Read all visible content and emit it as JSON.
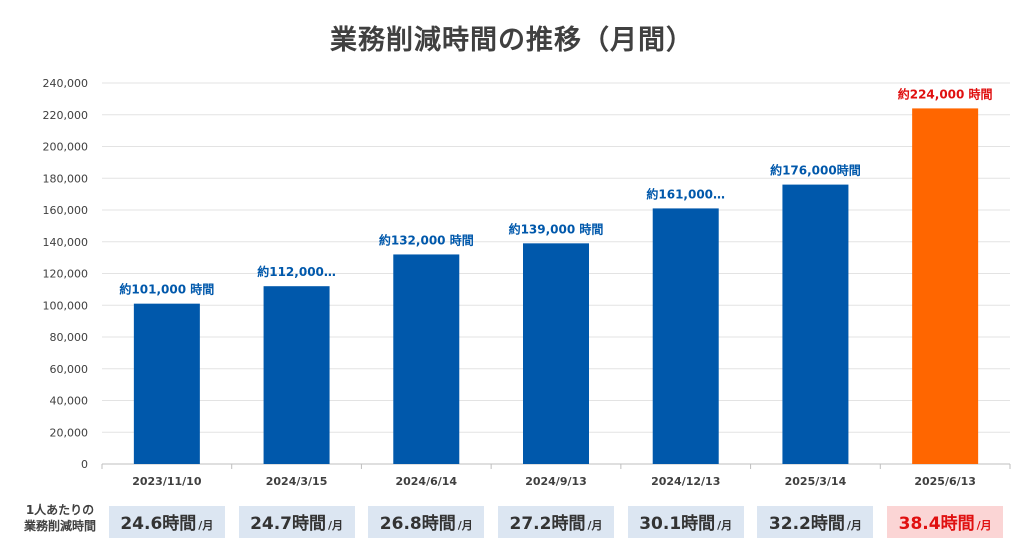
{
  "title": "業務削減時間の推移（月間）",
  "colors": {
    "bar": "#0058ab",
    "highlight_bar": "#ff6600",
    "label": "#0058ab",
    "highlight_label": "#e01010"
  },
  "chart_data": {
    "type": "bar",
    "title": "業務削減時間の推移（月間）",
    "categories": [
      "2023/11/10",
      "2024/3/15",
      "2024/6/14",
      "2024/9/13",
      "2024/12/13",
      "2025/3/14",
      "2025/6/13"
    ],
    "values": [
      101000,
      112000,
      132000,
      139000,
      161000,
      176000,
      224000
    ],
    "data_labels": [
      "約101,000 時間",
      "約112,000…",
      "約132,000 時間",
      "約139,000 時間",
      "約161,000…",
      "約176,000時間",
      "約224,000 時間"
    ],
    "highlight_index": 6,
    "ylim": [
      0,
      240000
    ],
    "yticks": [
      "0",
      "20,000",
      "40,000",
      "60,000",
      "80,000",
      "100,000",
      "120,000",
      "140,000",
      "160,000",
      "180,000",
      "200,000",
      "220,000",
      "240,000"
    ],
    "grid": true,
    "legend": "none"
  },
  "per_person": {
    "label_line1": "1人あたりの",
    "label_line2": "業務削減時間",
    "unit": "/月",
    "values": [
      "24.6時間",
      "24.7時間",
      "26.8時間",
      "27.2時間",
      "30.1時間",
      "32.2時間",
      "38.4時間"
    ]
  }
}
